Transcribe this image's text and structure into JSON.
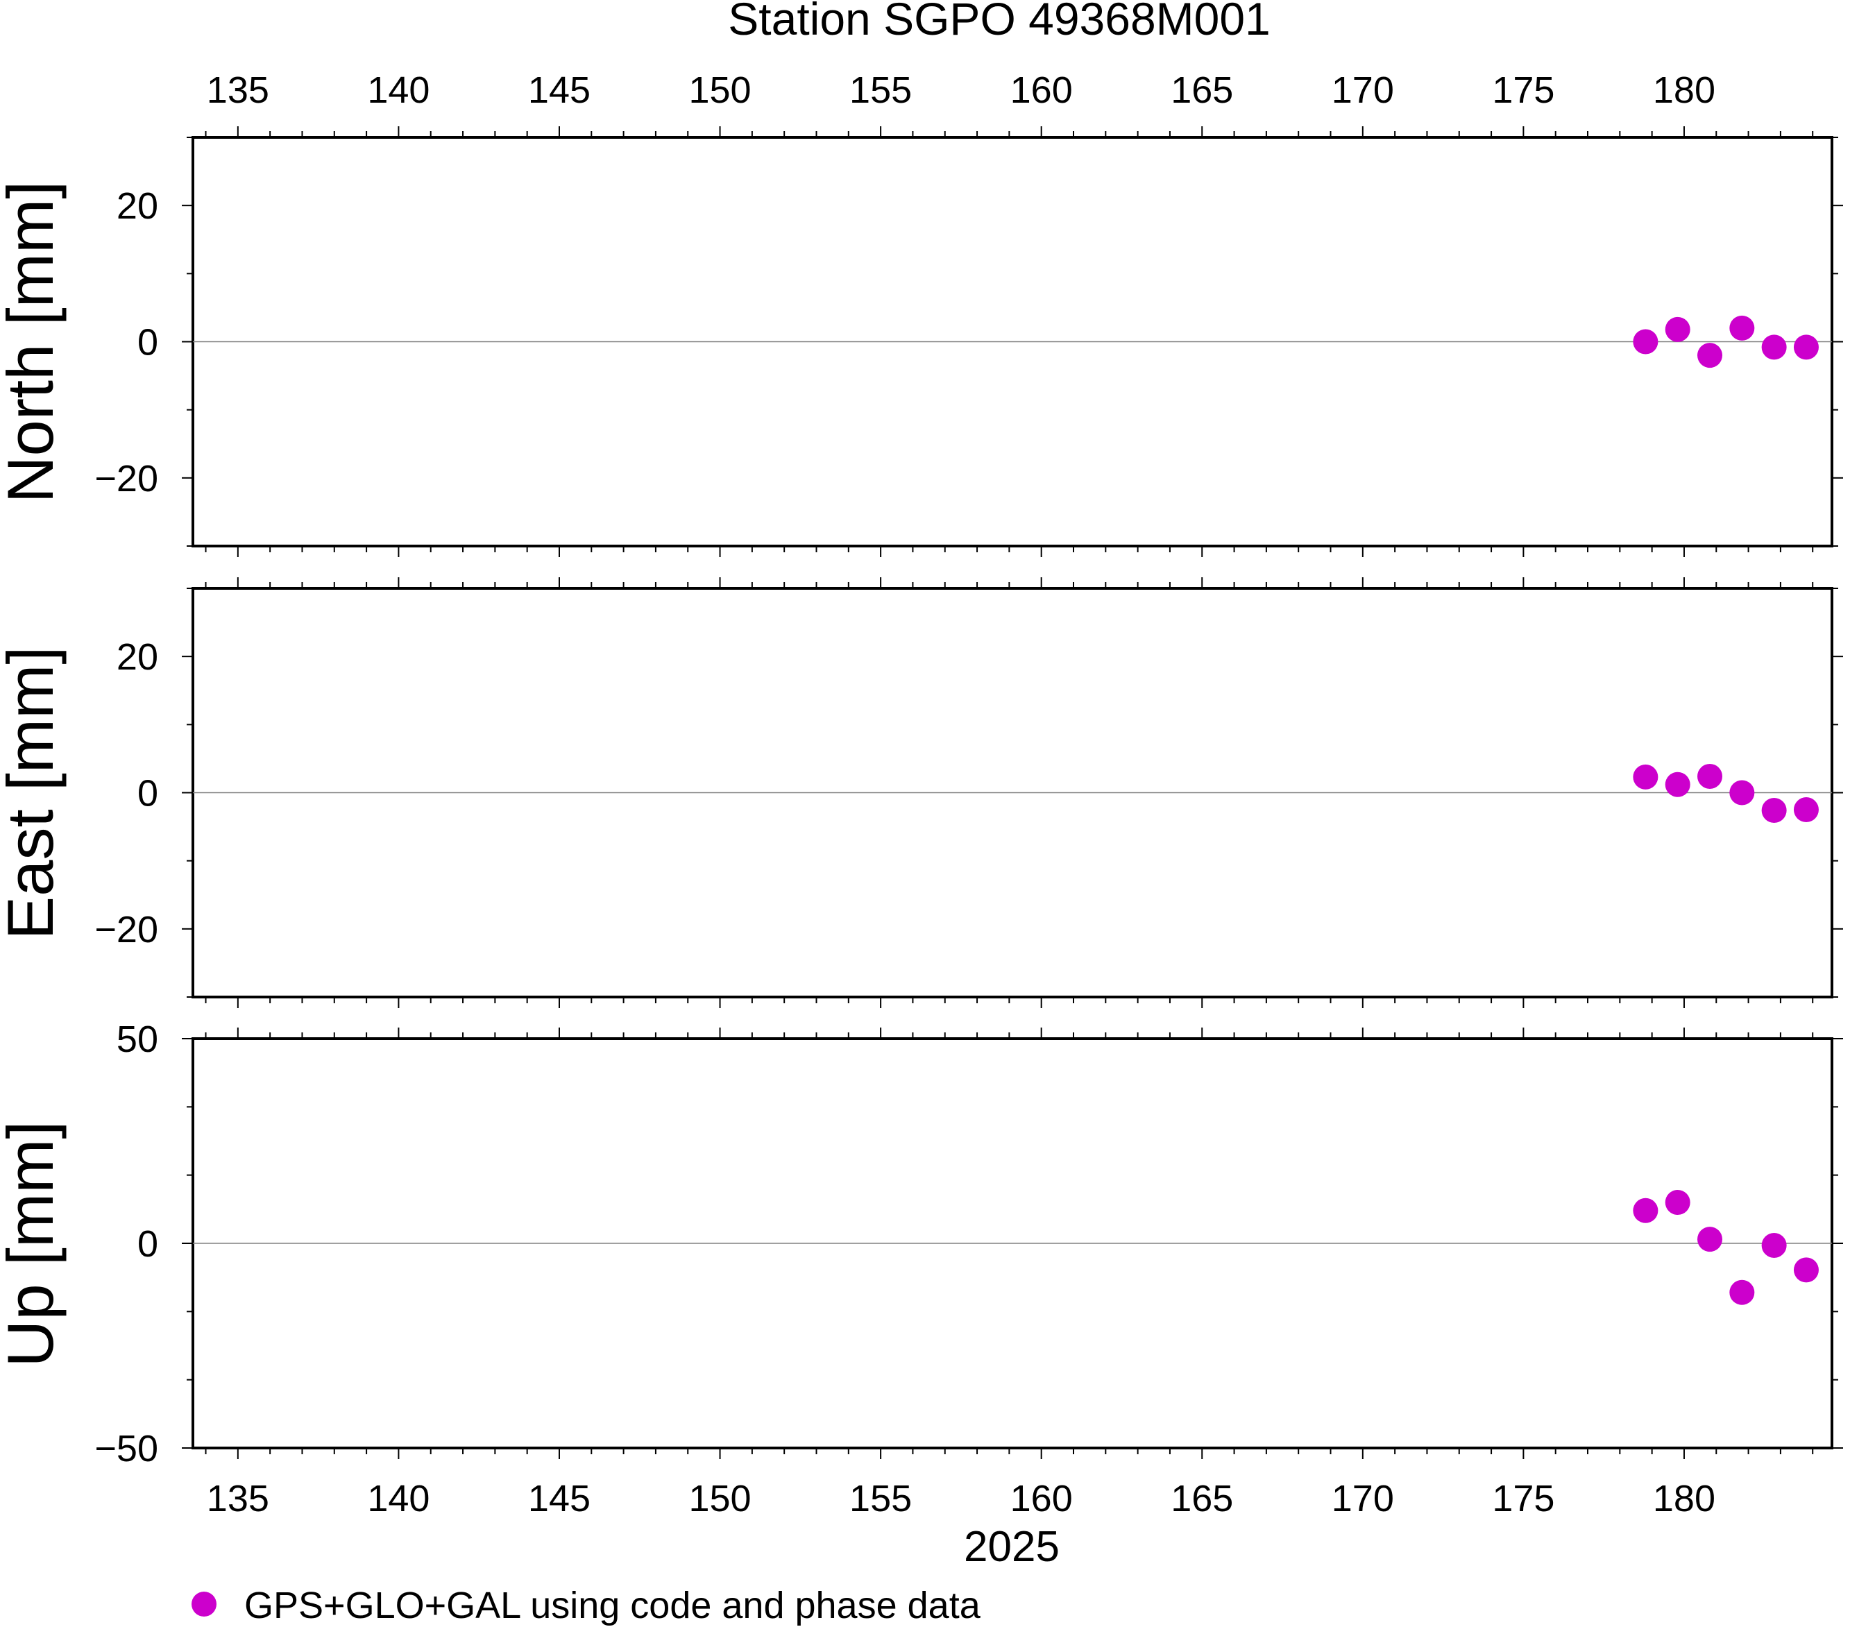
{
  "chart_data": {
    "type": "scatter",
    "title": "Station SGPO 49368M001",
    "xlabel": "2025",
    "x_ticks": [
      135,
      140,
      145,
      150,
      155,
      160,
      165,
      170,
      175,
      180
    ],
    "xlim": [
      133.6,
      184.6
    ],
    "marker_color": "#cc00cc",
    "legend": {
      "label": "GPS+GLO+GAL using code and phase data",
      "position": "bottom-left"
    },
    "panels": [
      {
        "ylabel": "North [mm]",
        "ylim": [
          -30,
          30
        ],
        "y_ticks": [
          -20,
          0,
          20
        ],
        "y_tick_labels": [
          "−20",
          "0",
          "20"
        ],
        "x": [
          178.8,
          179.8,
          180.8,
          181.8,
          182.8,
          183.8
        ],
        "y": [
          0.0,
          1.8,
          -2.0,
          2.0,
          -0.8,
          -0.8
        ]
      },
      {
        "ylabel": "East [mm]",
        "ylim": [
          -30,
          30
        ],
        "y_ticks": [
          -20,
          0,
          20
        ],
        "y_tick_labels": [
          "−20",
          "0",
          "20"
        ],
        "x": [
          178.8,
          179.8,
          180.8,
          181.8,
          182.8,
          183.8
        ],
        "y": [
          2.3,
          1.2,
          2.4,
          0.0,
          -2.6,
          -2.5
        ]
      },
      {
        "ylabel": "Up [mm]",
        "ylim": [
          -50,
          50
        ],
        "y_ticks": [
          -50,
          0,
          50
        ],
        "y_tick_labels": [
          "−50",
          "0",
          "50"
        ],
        "x": [
          178.8,
          179.8,
          180.8,
          181.8,
          182.8,
          183.8
        ],
        "y": [
          8.0,
          10.0,
          1.0,
          -12.0,
          -0.5,
          -6.5
        ]
      }
    ]
  }
}
